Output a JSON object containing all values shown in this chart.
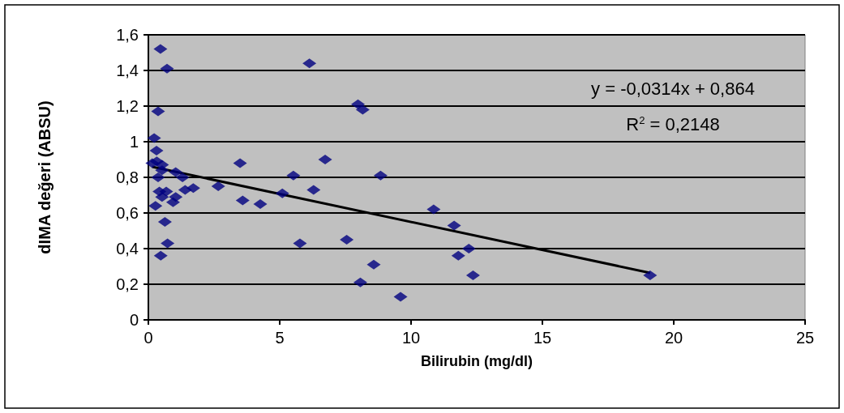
{
  "chart_data": {
    "type": "scatter",
    "xlabel": "Bilirubin (mg/dl)",
    "ylabel": "dIMA değeri (ABSU)",
    "xlim": [
      0,
      25
    ],
    "xticks": [
      0,
      5,
      10,
      15,
      20,
      25
    ],
    "ylim": [
      0,
      1.6
    ],
    "yticks": [
      0,
      {
        "value": 0.2,
        "label": "0,2"
      },
      {
        "value": 0.4,
        "label": "0,4"
      },
      {
        "value": 0.6,
        "label": "0,6"
      },
      {
        "value": 0.8,
        "label": "0,8"
      },
      1,
      {
        "value": 1.2,
        "label": "1,2"
      },
      {
        "value": 1.4,
        "label": "1,4"
      },
      {
        "value": 1.6,
        "label": "1,6"
      }
    ],
    "grid": "y",
    "marker": "diamond",
    "series": [
      {
        "color": "#000080",
        "x": [
          0.46,
          0.71,
          0.37,
          0.22,
          0.31,
          0.15,
          0.32,
          0.52,
          0.37,
          1.04,
          0.52,
          1.3,
          0.42,
          0.68,
          0.52,
          1.04,
          0.94,
          1.4,
          1.71,
          0.27,
          0.63,
          0.73,
          0.47,
          2.66,
          3.49,
          3.59,
          4.26,
          5.1,
          5.52,
          5.77,
          6.13,
          6.29,
          6.73,
          7.55,
          7.98,
          8.16,
          8.07,
          8.58,
          8.84,
          9.6,
          10.86,
          11.64,
          12.2,
          11.8,
          12.36,
          19.1
        ],
        "values": [
          1.52,
          1.41,
          1.17,
          1.02,
          0.95,
          0.88,
          0.89,
          0.87,
          0.8,
          0.83,
          0.84,
          0.8,
          0.72,
          0.72,
          0.69,
          0.69,
          0.66,
          0.73,
          0.74,
          0.64,
          0.55,
          0.43,
          0.36,
          0.75,
          0.88,
          0.67,
          0.65,
          0.71,
          0.81,
          0.43,
          1.44,
          0.73,
          0.9,
          0.45,
          1.21,
          1.18,
          0.21,
          0.31,
          0.81,
          0.13,
          0.62,
          0.53,
          0.4,
          0.36,
          0.25,
          0.25
        ]
      },
      {
        "type": "line",
        "color": "#000000",
        "marker": "none",
        "x": [
          0.15,
          19.1
        ],
        "values": [
          0.859,
          0.264
        ]
      }
    ],
    "annotations": [
      "y = -0,0314x + 0,864",
      "R$^{2}$ = 0,2148"
    ]
  }
}
